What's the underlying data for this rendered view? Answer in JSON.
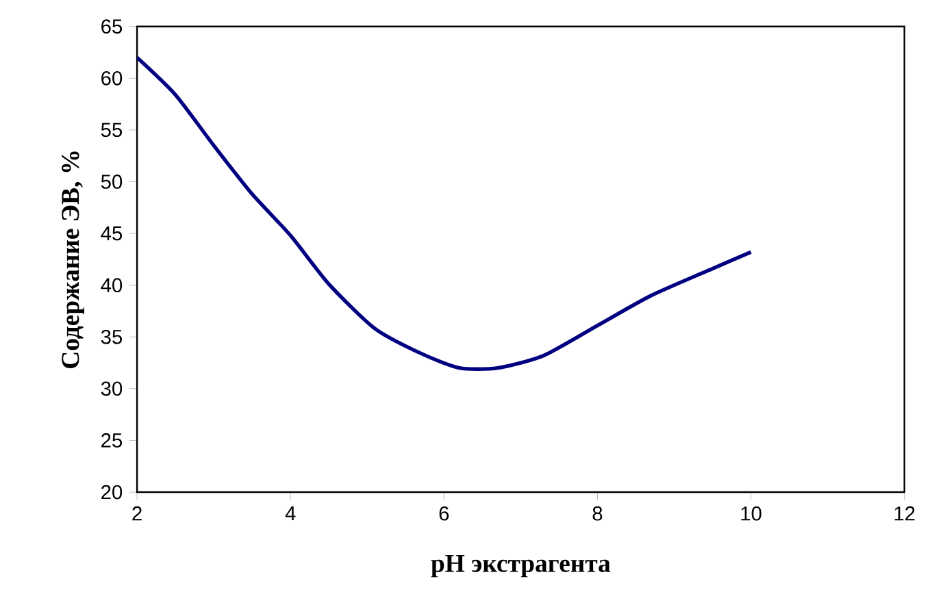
{
  "chart_data": {
    "type": "line",
    "xlabel": "pH экстрагента",
    "ylabel": "Содержание ЭВ, %",
    "x": [
      2,
      2.5,
      3,
      3.5,
      4,
      4.5,
      5.1,
      5.7,
      6.2,
      6.7,
      7.3,
      8,
      8.7,
      9.5,
      10
    ],
    "series": [
      {
        "color": "#000080",
        "values": [
          62,
          58.4,
          53.5,
          48.8,
          44.8,
          40.1,
          35.8,
          33.4,
          32,
          32,
          33.2,
          36.1,
          39,
          41.6,
          43.2
        ]
      }
    ],
    "xlim": [
      2,
      12
    ],
    "xticks": [
      2,
      4,
      6,
      8,
      10,
      12
    ],
    "ylim": [
      20,
      65
    ],
    "yticks": [
      20,
      25,
      30,
      35,
      40,
      45,
      50,
      55,
      60,
      65
    ],
    "marker": "none",
    "line_style": "solid"
  }
}
